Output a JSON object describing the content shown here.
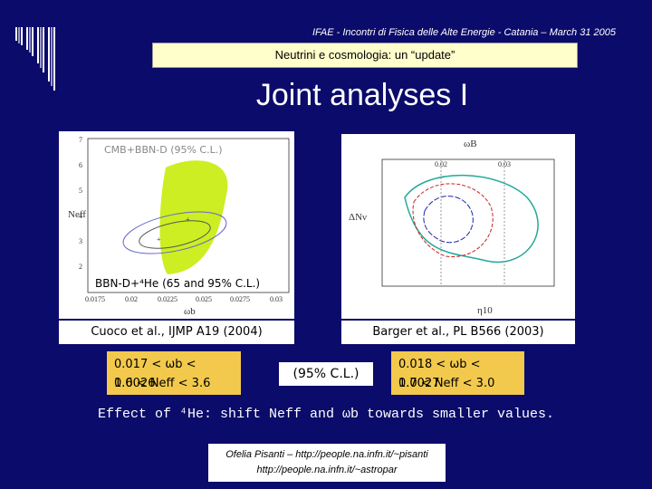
{
  "header": "IFAE - Incontri di Fisica delle Alte Energie - Catania – March 31 2005",
  "subtitle": "Neutrini e cosmologia: un “update”",
  "title": "Joint analyses I",
  "left_plot": {
    "inner_label": "CMB+BBN-D (95% C.L.)",
    "lower_label": "BBN-D+⁴He (65 and 95% C.L.)",
    "y_label": "Neff",
    "x_label": "ωb",
    "x_ticks": [
      "0.0175",
      "0.02",
      "0.0225",
      "0.025",
      "0.0275",
      "0.03"
    ],
    "y_ticks": [
      "7",
      "6",
      "5",
      "4",
      "3",
      "2"
    ]
  },
  "right_plot": {
    "top_label": "ωB",
    "y_label": "ΔNν",
    "x_label": "η10",
    "top_ticks": [
      "0.02",
      "0.03"
    ]
  },
  "left_caption": "Cuoco et al., IJMP A19 (2004)",
  "right_caption": "Barger et al., PL B566 (2003)",
  "left_result": [
    "0.017 < ωb < 0.0026",
    "1.6 < Neff < 3.6"
  ],
  "right_result": [
    "0.018 < ωb < 0.0027",
    "1.7 < Neff < 3.0"
  ],
  "confidence_note": "(95% C.L.)",
  "conclusion": "Effect of ⁴He: shift Neff and ωb towards smaller values.",
  "footer": [
    "Ofelia Pisanti – http://people.na.infn.it/~pisanti",
    "http://people.na.infn.it/~astropar"
  ]
}
